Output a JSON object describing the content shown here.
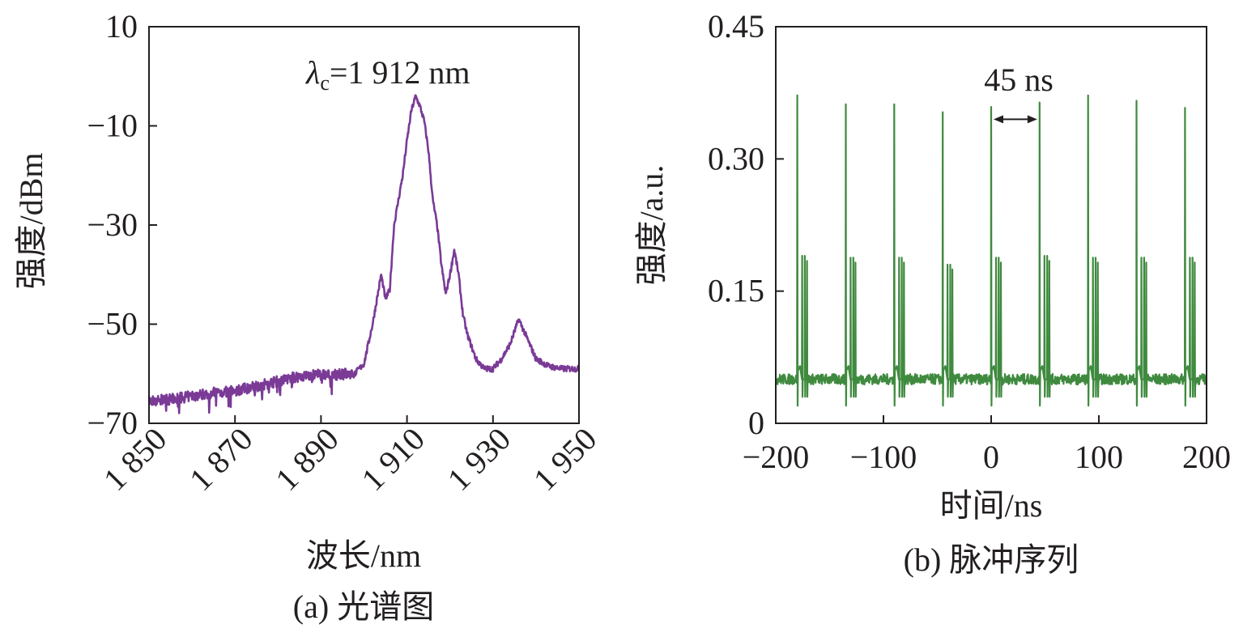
{
  "chart_data": [
    {
      "type": "line",
      "panel_caption": "(a) 光谱图",
      "xlabel": "波长/nm",
      "ylabel": "强度/dBm",
      "xlim": [
        1850,
        1950
      ],
      "ylim": [
        -70,
        10
      ],
      "x_ticks": [
        1850,
        1870,
        1890,
        1910,
        1930,
        1950
      ],
      "x_tick_labels": [
        "1 850",
        "1 870",
        "1 890",
        "1 910",
        "1 930",
        "1 950"
      ],
      "y_ticks": [
        10,
        -10,
        -30,
        -50,
        -70
      ],
      "y_tick_labels": [
        "10",
        "−10",
        "−30",
        "−50",
        "−70"
      ],
      "line_color": "#7a3a96",
      "annotation": {
        "symbol": "λ",
        "subscript": "c",
        "text": "=1 912 nm"
      },
      "series": [
        {
          "name": "spectrum",
          "x": [
            1850,
            1855,
            1860,
            1865,
            1870,
            1875,
            1880,
            1885,
            1890,
            1895,
            1898,
            1900,
            1902,
            1904,
            1905,
            1906,
            1907,
            1908,
            1909,
            1910,
            1911,
            1912,
            1913,
            1914,
            1915,
            1916,
            1917,
            1918,
            1919,
            1920,
            1921,
            1922,
            1923,
            1924,
            1926,
            1928,
            1930,
            1932,
            1934,
            1936,
            1938,
            1940,
            1943,
            1946,
            1950
          ],
          "y": [
            -65.5,
            -65.2,
            -64.5,
            -63.8,
            -63.5,
            -62.5,
            -61.5,
            -60.5,
            -60.2,
            -60.1,
            -59.8,
            -58,
            -50,
            -40,
            -45,
            -43,
            -30,
            -25,
            -20,
            -13,
            -7,
            -4,
            -6,
            -9,
            -15,
            -25,
            -30,
            -38,
            -44,
            -40,
            -35,
            -40,
            -48,
            -52,
            -57,
            -59,
            -59,
            -57,
            -54,
            -49,
            -53,
            -57,
            -58.5,
            -59,
            -59
          ]
        }
      ]
    },
    {
      "type": "line",
      "panel_caption": "(b) 脉冲序列",
      "xlabel": "时间/ns",
      "ylabel": "强度/a.u.",
      "xlim": [
        -200,
        200
      ],
      "ylim": [
        0,
        0.45
      ],
      "x_ticks": [
        -200,
        -100,
        0,
        100,
        200
      ],
      "x_tick_labels": [
        "−200",
        "−100",
        "0",
        "100",
        "200"
      ],
      "y_ticks": [
        0,
        0.15,
        0.3,
        0.45
      ],
      "y_tick_labels": [
        "0",
        "0.15",
        "0.30",
        "0.45"
      ],
      "line_color": "#3f8a3f",
      "baseline": 0.05,
      "period_label": "45 ns",
      "period_arrow": [
        0,
        45
      ],
      "pulses": [
        {
          "t": -180,
          "peak": 0.372,
          "sub": 0.19
        },
        {
          "t": -135,
          "peak": 0.362,
          "sub": 0.188
        },
        {
          "t": -90,
          "peak": 0.362,
          "sub": 0.188
        },
        {
          "t": -45,
          "peak": 0.353,
          "sub": 0.18
        },
        {
          "t": 0,
          "peak": 0.359,
          "sub": 0.188
        },
        {
          "t": 45,
          "peak": 0.364,
          "sub": 0.19
        },
        {
          "t": 90,
          "peak": 0.372,
          "sub": 0.188
        },
        {
          "t": 135,
          "peak": 0.366,
          "sub": 0.188
        },
        {
          "t": 180,
          "peak": 0.358,
          "sub": 0.188
        }
      ]
    }
  ]
}
